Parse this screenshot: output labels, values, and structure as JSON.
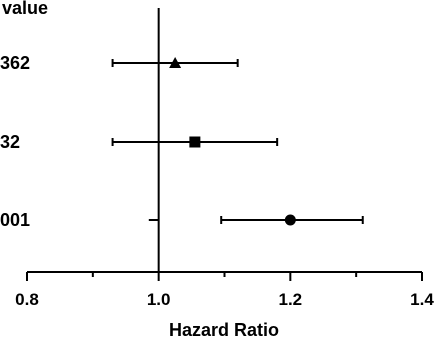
{
  "chart_data": {
    "type": "forest",
    "xlabel": "Hazard Ratio",
    "xlim": [
      0.8,
      1.4
    ],
    "x_ticks": [
      0.8,
      1.0,
      1.2,
      1.4
    ],
    "x_tick_labels": [
      "0.8",
      "1.0",
      "1.2",
      "1.4"
    ],
    "minor_ticks": [
      0.9,
      1.1,
      1.3
    ],
    "reference_line": 1.0,
    "pvalue_column_header": "value",
    "rows": [
      {
        "pvalue_label": "362",
        "hr": 1.025,
        "ci_low": 0.93,
        "ci_high": 1.12,
        "marker": "triangle"
      },
      {
        "pvalue_label": "32",
        "hr": 1.055,
        "ci_low": 0.93,
        "ci_high": 1.18,
        "marker": "square"
      },
      {
        "pvalue_label": "001",
        "hr": 1.2,
        "ci_low": 1.095,
        "ci_high": 1.31,
        "marker": "circle"
      }
    ],
    "extra_segments": [
      {
        "row": 1,
        "x_low": 0.985,
        "x_high": 1.0
      },
      {
        "row": 2,
        "x_low": 0.985,
        "x_high": 1.0
      }
    ],
    "colors": {
      "ink": "#000000",
      "background": "#ffffff"
    }
  }
}
